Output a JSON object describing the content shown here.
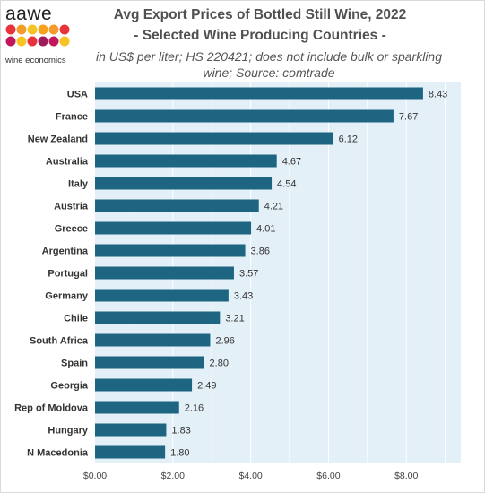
{
  "logo": {
    "wordmark": "aawe",
    "tagline": "wine economics",
    "dot_colors": [
      "#e8333a",
      "#f39b2b",
      "#f6c324",
      "#f7a21b",
      "#f39b2b",
      "#e8333a",
      "#c2185b",
      "#f6c324",
      "#e8333a",
      "#a0195a",
      "#c2185b",
      "#f6c324"
    ]
  },
  "chart_data": {
    "type": "bar",
    "orientation": "horizontal",
    "title_line1": "Avg Export Prices of Bottled Still Wine, 2022",
    "title_line2": "- Selected Wine Producing Countries -",
    "subtitle_line1": "in US$ per liter; HS 220421; does not include bulk or sparkling",
    "subtitle_line2": "wine; Source: comtrade",
    "categories": [
      "USA",
      "France",
      "New Zealand",
      "Australia",
      "Italy",
      "Austria",
      "Greece",
      "Argentina",
      "Portugal",
      "Germany",
      "Chile",
      "South Africa",
      "Spain",
      "Georgia",
      "Rep of Moldova",
      "Hungary",
      "N Macedonia"
    ],
    "values": [
      8.43,
      7.67,
      6.12,
      4.67,
      4.54,
      4.21,
      4.01,
      3.86,
      3.57,
      3.43,
      3.21,
      2.96,
      2.8,
      2.49,
      2.16,
      1.83,
      1.8
    ],
    "value_labels": [
      "8.43",
      "7.67",
      "6.12",
      "4.67",
      "4.54",
      "4.21",
      "4.01",
      "3.86",
      "3.57",
      "3.43",
      "3.21",
      "2.96",
      "2.80",
      "2.49",
      "2.16",
      "1.83",
      "1.80"
    ],
    "x_ticks": [
      0,
      2,
      4,
      6,
      8
    ],
    "x_tick_labels": [
      "$0.00",
      "$2.00",
      "$4.00",
      "$6.00",
      "$8.00"
    ],
    "xlim": [
      0,
      9.4
    ],
    "grid": true,
    "colors": {
      "bar": "#1d6580",
      "plot_bg": "#e4f0f7",
      "grid": "#ffffff"
    }
  }
}
